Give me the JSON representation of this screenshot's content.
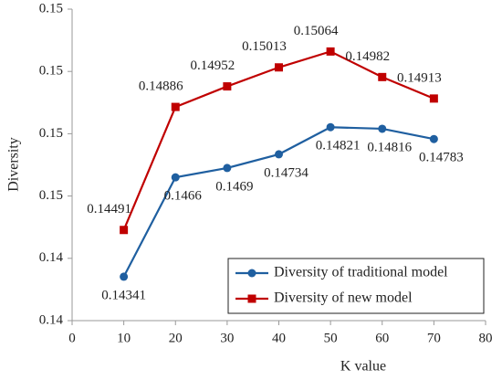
{
  "chart_data": {
    "type": "line",
    "x_label": "K value",
    "y_label": "Diversity",
    "x": [
      10,
      20,
      30,
      40,
      50,
      60,
      70
    ],
    "series": [
      {
        "name": "Diversity of traditional model",
        "color": "#1f5fa0",
        "marker": "circle",
        "values": [
          0.14341,
          0.1466,
          0.1469,
          0.14734,
          0.14821,
          0.14816,
          0.14783
        ]
      },
      {
        "name": "Diversity of new model",
        "color": "#c00000",
        "marker": "square",
        "values": [
          0.14491,
          0.14886,
          0.14952,
          0.15013,
          0.15064,
          0.14982,
          0.14913
        ]
      }
    ],
    "xlim": [
      0,
      80
    ],
    "xticks": [
      0,
      10,
      20,
      30,
      40,
      50,
      60,
      70,
      80
    ],
    "ylim": [
      0.142,
      0.152
    ],
    "yticks": [
      {
        "value": 0.142,
        "label": "0.14"
      },
      {
        "value": 0.144,
        "label": "0.14"
      },
      {
        "value": 0.146,
        "label": "0.15"
      },
      {
        "value": 0.148,
        "label": "0.15"
      },
      {
        "value": 0.15,
        "label": "0.15"
      },
      {
        "value": 0.152,
        "label": "0.15"
      }
    ],
    "legend": "lower right"
  }
}
